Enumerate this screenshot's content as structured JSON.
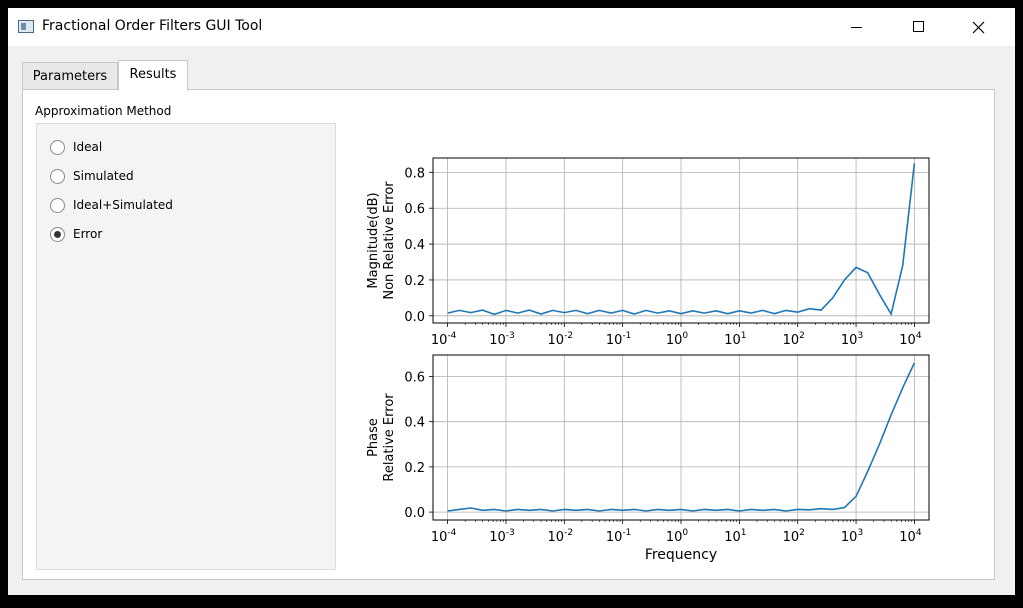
{
  "window": {
    "title": "Fractional Order Filters GUI Tool"
  },
  "tabs": [
    {
      "label": "Parameters",
      "active": false
    },
    {
      "label": "Results",
      "active": true
    }
  ],
  "approximation": {
    "title": "Approximation Method",
    "options": [
      {
        "label": "Ideal",
        "checked": false
      },
      {
        "label": "Simulated",
        "checked": false
      },
      {
        "label": "Ideal+Simulated",
        "checked": false
      },
      {
        "label": "Error",
        "checked": true
      }
    ]
  },
  "chart_data": [
    {
      "type": "line",
      "xscale": "log",
      "xlim": [
        5.62e-05,
        17782
      ],
      "ylim": [
        -0.04,
        0.88
      ],
      "ylabel": [
        "Magnitude(dB)",
        "Non Relative Error"
      ],
      "xlabel": "",
      "xticks": [
        "10^-4",
        "10^-3",
        "10^-2",
        "10^-1",
        "10^0",
        "10^1",
        "10^2",
        "10^3",
        "10^4"
      ],
      "yticks": [
        "0.0",
        "0.2",
        "0.4",
        "0.6",
        "0.8"
      ],
      "grid": true,
      "color": "#1f77b4",
      "x_log10": [
        -4,
        -3.8,
        -3.6,
        -3.4,
        -3.2,
        -3,
        -2.8,
        -2.6,
        -2.4,
        -2.2,
        -2,
        -1.8,
        -1.6,
        -1.4,
        -1.2,
        -1,
        -0.8,
        -0.6,
        -0.4,
        -0.2,
        0,
        0.2,
        0.4,
        0.6,
        0.8,
        1,
        1.2,
        1.4,
        1.6,
        1.8,
        2,
        2.2,
        2.4,
        2.6,
        2.8,
        3,
        3.2,
        3.4,
        3.6,
        3.8,
        4
      ],
      "y": [
        0.015,
        0.03,
        0.018,
        0.032,
        0.008,
        0.03,
        0.015,
        0.032,
        0.01,
        0.03,
        0.018,
        0.03,
        0.012,
        0.03,
        0.016,
        0.03,
        0.01,
        0.03,
        0.015,
        0.028,
        0.012,
        0.028,
        0.015,
        0.028,
        0.012,
        0.028,
        0.016,
        0.03,
        0.012,
        0.03,
        0.02,
        0.04,
        0.032,
        0.1,
        0.2,
        0.27,
        0.24,
        0.12,
        0.01,
        0.28,
        0.85
      ]
    },
    {
      "type": "line",
      "xscale": "log",
      "xlim": [
        5.62e-05,
        17782
      ],
      "ylim": [
        -0.035,
        0.695
      ],
      "ylabel": [
        "Phase",
        "Relative Error"
      ],
      "xlabel": "Frequency",
      "xticks": [
        "10^-4",
        "10^-3",
        "10^-2",
        "10^-1",
        "10^0",
        "10^1",
        "10^2",
        "10^3",
        "10^4"
      ],
      "yticks": [
        "0.0",
        "0.2",
        "0.4",
        "0.6"
      ],
      "grid": true,
      "color": "#1f77b4",
      "x_log10": [
        -4,
        -3.8,
        -3.6,
        -3.4,
        -3.2,
        -3,
        -2.8,
        -2.6,
        -2.4,
        -2.2,
        -2,
        -1.8,
        -1.6,
        -1.4,
        -1.2,
        -1,
        -0.8,
        -0.6,
        -0.4,
        -0.2,
        0,
        0.2,
        0.4,
        0.6,
        0.8,
        1,
        1.2,
        1.4,
        1.6,
        1.8,
        2,
        2.2,
        2.4,
        2.6,
        2.8,
        3,
        3.2,
        3.4,
        3.6,
        3.8,
        4
      ],
      "y": [
        0.005,
        0.012,
        0.018,
        0.008,
        0.012,
        0.005,
        0.012,
        0.008,
        0.012,
        0.005,
        0.012,
        0.008,
        0.012,
        0.005,
        0.012,
        0.008,
        0.012,
        0.005,
        0.012,
        0.008,
        0.012,
        0.005,
        0.012,
        0.008,
        0.012,
        0.005,
        0.012,
        0.008,
        0.012,
        0.005,
        0.012,
        0.01,
        0.015,
        0.012,
        0.02,
        0.07,
        0.18,
        0.3,
        0.43,
        0.55,
        0.66
      ]
    }
  ]
}
